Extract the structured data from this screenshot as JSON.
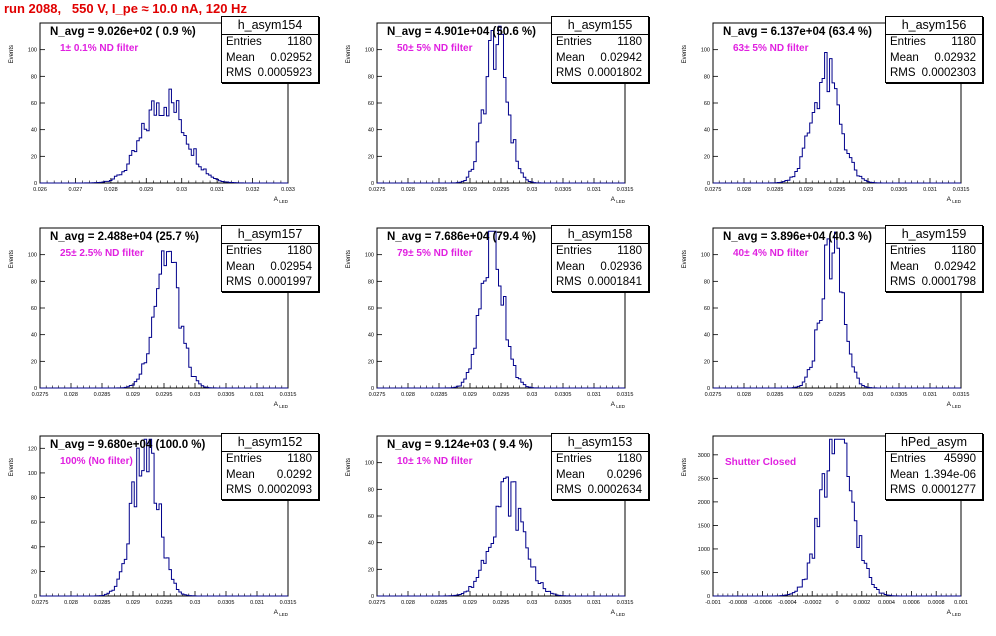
{
  "title": "run 2088,   550 V, I_pe ≈ 10.0 nA, 120 Hz",
  "colors": {
    "title": "#e00000",
    "histogram": "#00008b",
    "annotation": "#e020e0"
  },
  "chart_data": [
    {
      "type": "bar",
      "name": "h_asym154",
      "ylabel": "Events",
      "xlabel": "A_LED",
      "navg": "N_avg = 9.026e+02 ( 0.9 %)",
      "filter": "1± 0.1% ND filter",
      "stats": {
        "entries": "1180",
        "mean": "0.02952",
        "rms": "0.0005923"
      },
      "xlim": [
        0.026,
        0.033
      ],
      "ylim": [
        0,
        120
      ],
      "xticks": [
        "0.026",
        "0.027",
        "0.028",
        "0.029",
        "0.03",
        "0.031",
        "0.032",
        "0.033"
      ],
      "yticks": [
        "0",
        "20",
        "40",
        "60",
        "80",
        "100"
      ],
      "mean": 0.02952,
      "sigma": 0.0005923,
      "peak": 63
    },
    {
      "type": "bar",
      "name": "h_asym155",
      "ylabel": "Events",
      "xlabel": "A_LED",
      "navg": "N_avg = 4.901e+04 (50.6 %)",
      "filter": "50± 5% ND filter",
      "stats": {
        "entries": "1180",
        "mean": "0.02942",
        "rms": "0.0001802"
      },
      "xlim": [
        0.0275,
        0.0315
      ],
      "ylim": [
        0,
        120
      ],
      "xticks": [
        "0.0275",
        "0.028",
        "0.0285",
        "0.029",
        "0.0295",
        "0.03",
        "0.0305",
        "0.031",
        "0.0315"
      ],
      "yticks": [
        "0",
        "20",
        "40",
        "60",
        "80",
        "100"
      ],
      "mean": 0.02942,
      "sigma": 0.0001802,
      "peak": 108
    },
    {
      "type": "bar",
      "name": "h_asym156",
      "ylabel": "Events",
      "xlabel": "A_LED",
      "navg": "N_avg = 6.137e+04 (63.4 %)",
      "filter": "63± 5% ND filter",
      "stats": {
        "entries": "1180",
        "mean": "0.02932",
        "rms": "0.0002303"
      },
      "xlim": [
        0.0275,
        0.0315
      ],
      "ylim": [
        0,
        120
      ],
      "xticks": [
        "0.0275",
        "0.028",
        "0.0285",
        "0.029",
        "0.0295",
        "0.03",
        "0.0305",
        "0.031",
        "0.0315"
      ],
      "yticks": [
        "0",
        "20",
        "40",
        "60",
        "80",
        "100"
      ],
      "mean": 0.02932,
      "sigma": 0.0002303,
      "peak": 80
    },
    {
      "type": "bar",
      "name": "h_asym157",
      "ylabel": "Events",
      "xlabel": "A_LED",
      "navg": "N_avg = 2.488e+04 (25.7 %)",
      "filter": "25± 2.5% ND filter",
      "stats": {
        "entries": "1180",
        "mean": "0.02954",
        "rms": "0.0001997"
      },
      "xlim": [
        0.0275,
        0.0315
      ],
      "ylim": [
        0,
        120
      ],
      "xticks": [
        "0.0275",
        "0.028",
        "0.0285",
        "0.029",
        "0.0295",
        "0.03",
        "0.0305",
        "0.031",
        "0.0315"
      ],
      "yticks": [
        "0",
        "20",
        "40",
        "60",
        "80",
        "100"
      ],
      "mean": 0.02954,
      "sigma": 0.0001997,
      "peak": 102
    },
    {
      "type": "bar",
      "name": "h_asym158",
      "ylabel": "Events",
      "xlabel": "A_LED",
      "navg": "N_avg = 7.686e+04 (79.4 %)",
      "filter": "79± 5% ND filter",
      "stats": {
        "entries": "1180",
        "mean": "0.02936",
        "rms": "0.0001841"
      },
      "xlim": [
        0.0275,
        0.0315
      ],
      "ylim": [
        0,
        120
      ],
      "xticks": [
        "0.0275",
        "0.028",
        "0.0285",
        "0.029",
        "0.0295",
        "0.03",
        "0.0305",
        "0.031",
        "0.0315"
      ],
      "yticks": [
        "0",
        "20",
        "40",
        "60",
        "80",
        "100"
      ],
      "mean": 0.02936,
      "sigma": 0.0001841,
      "peak": 110
    },
    {
      "type": "bar",
      "name": "h_asym159",
      "ylabel": "Events",
      "xlabel": "A_LED",
      "navg": "N_avg = 3.896e+04 (40.3 %)",
      "filter": "40± 4% ND filter",
      "stats": {
        "entries": "1180",
        "mean": "0.02942",
        "rms": "0.0001798"
      },
      "xlim": [
        0.0275,
        0.0315
      ],
      "ylim": [
        0,
        120
      ],
      "xticks": [
        "0.0275",
        "0.028",
        "0.0285",
        "0.029",
        "0.0295",
        "0.03",
        "0.0305",
        "0.031",
        "0.0315"
      ],
      "yticks": [
        "0",
        "20",
        "40",
        "60",
        "80",
        "100"
      ],
      "mean": 0.02942,
      "sigma": 0.0001798,
      "peak": 105
    },
    {
      "type": "bar",
      "name": "h_asym152",
      "ylabel": "Events",
      "xlabel": "A_LED",
      "navg": "N_avg = 9.680e+04 (100.0 %)",
      "filter": "100% (No filter)",
      "stats": {
        "entries": "1180",
        "mean": "0.0292",
        "rms": "0.0002093"
      },
      "xlim": [
        0.0275,
        0.0315
      ],
      "ylim": [
        0,
        130
      ],
      "xticks": [
        "0.0275",
        "0.028",
        "0.0285",
        "0.029",
        "0.0295",
        "0.03",
        "0.0305",
        "0.031",
        "0.0315"
      ],
      "yticks": [
        "0",
        "20",
        "40",
        "60",
        "80",
        "100",
        "120"
      ],
      "mean": 0.0292,
      "sigma": 0.0002093,
      "peak": 118
    },
    {
      "type": "bar",
      "name": "h_asym153",
      "ylabel": "Events",
      "xlabel": "A_LED",
      "navg": "N_avg = 9.124e+03 ( 9.4 %)",
      "filter": "10± 1% ND filter",
      "stats": {
        "entries": "1180",
        "mean": "0.0296",
        "rms": "0.0002634"
      },
      "xlim": [
        0.0275,
        0.0315
      ],
      "ylim": [
        0,
        120
      ],
      "xticks": [
        "0.0275",
        "0.028",
        "0.0285",
        "0.029",
        "0.0295",
        "0.03",
        "0.0305",
        "0.031",
        "0.0315"
      ],
      "yticks": [
        "0",
        "20",
        "40",
        "60",
        "80",
        "100"
      ],
      "mean": 0.0296,
      "sigma": 0.0002634,
      "peak": 78
    },
    {
      "type": "bar",
      "name": "hPed_asym",
      "ylabel": "Events",
      "xlabel": "A_LED",
      "navg": "",
      "filter": "Shutter Closed",
      "stats": {
        "entries": "45990",
        "mean": "1.394e-06",
        "rms": "0.0001277"
      },
      "xlim": [
        -0.001,
        0.001
      ],
      "ylim": [
        0,
        3400
      ],
      "xticks": [
        "-0.001",
        "-0.0008",
        "-0.0006",
        "-0.0004",
        "-0.0002",
        "0",
        "0.0002",
        "0.0004",
        "0.0006",
        "0.0008",
        "0.001"
      ],
      "yticks": [
        "0",
        "500",
        "1000",
        "1500",
        "2000",
        "2500",
        "3000"
      ],
      "mean": 1.4e-06,
      "sigma": 0.0001277,
      "peak": 3250
    }
  ]
}
